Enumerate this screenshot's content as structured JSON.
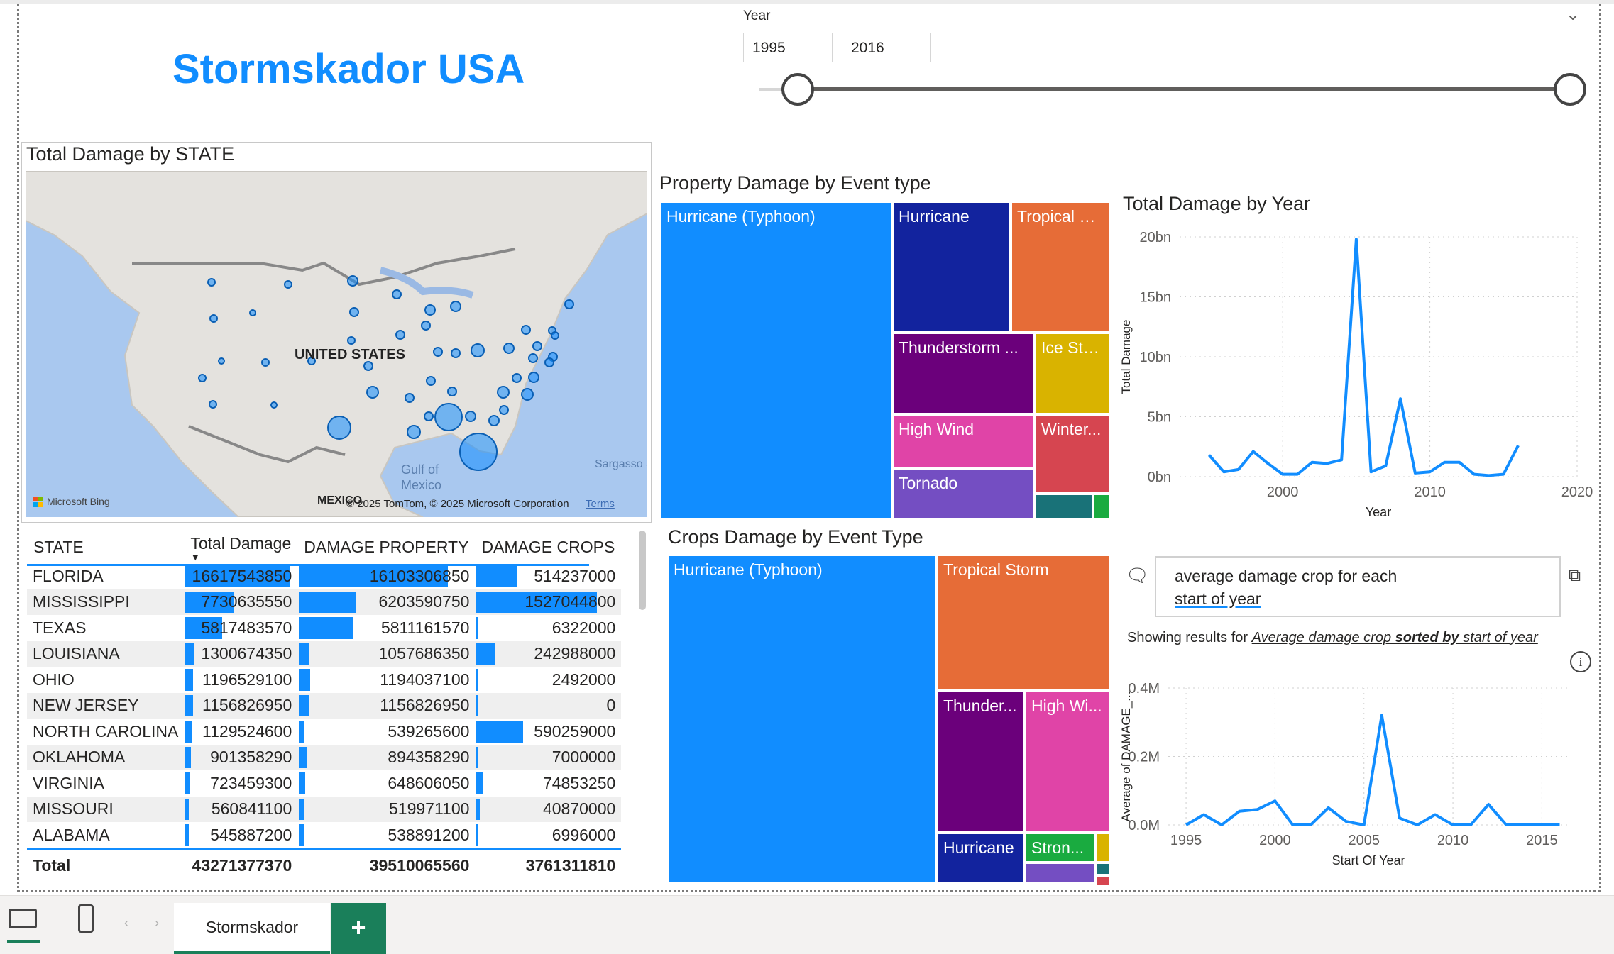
{
  "report": {
    "title": "Stormskador USA"
  },
  "year_slicer": {
    "label": "Year",
    "from": "1995",
    "to": "2016",
    "from_fraction": 0.0,
    "to_fraction": 1.0
  },
  "map": {
    "title": "Total Damage by STATE",
    "country_label": "UNITED STATES",
    "gulf_label": "Gulf of\nMexico",
    "mexico_label": "MEXICO",
    "sargasso_label": "Sargasso S",
    "bing_label": "Microsoft Bing",
    "copyright": "© 2025 TomTom, © 2025 Microsoft Corporation",
    "terms": "Terms"
  },
  "table": {
    "headers": [
      "STATE",
      "Total Damage",
      "DAMAGE PROPERTY",
      "DAMAGE CROPS"
    ],
    "rows": [
      [
        "FLORIDA",
        "16617543850",
        "16103306850",
        "514237000"
      ],
      [
        "MISSISSIPPI",
        "7730635550",
        "6203590750",
        "1527044800"
      ],
      [
        "TEXAS",
        "5817483570",
        "5811161570",
        "6322000"
      ],
      [
        "LOUISIANA",
        "1300674350",
        "1057686350",
        "242988000"
      ],
      [
        "OHIO",
        "1196529100",
        "1194037100",
        "2492000"
      ],
      [
        "NEW JERSEY",
        "1156826950",
        "1156826950",
        "0"
      ],
      [
        "NORTH CAROLINA",
        "1129524600",
        "539265600",
        "590259000"
      ],
      [
        "OKLAHOMA",
        "901358290",
        "894358290",
        "7000000"
      ],
      [
        "VIRGINIA",
        "723459300",
        "648606050",
        "74853250"
      ],
      [
        "MISSOURI",
        "560841100",
        "519971100",
        "40870000"
      ],
      [
        "ALABAMA",
        "545887200",
        "538891200",
        "6996000"
      ]
    ],
    "total": [
      "Total",
      "43271377370",
      "39510065560",
      "3761311810"
    ]
  },
  "property_treemap": {
    "title": "Property Damage by Event type",
    "tiles": [
      {
        "label": "Hurricane (Typhoon)",
        "color": "#118dff"
      },
      {
        "label": "Hurricane",
        "color": "#12239e"
      },
      {
        "label": "Tropical St...",
        "color": "#e66c37"
      },
      {
        "label": "Thunderstorm ...",
        "color": "#6b007b"
      },
      {
        "label": "Ice Sto...",
        "color": "#d9b300"
      },
      {
        "label": "High Wind",
        "color": "#e044a7"
      },
      {
        "label": "Winter...",
        "color": "#d64550"
      },
      {
        "label": "Tornado",
        "color": "#744ec2"
      },
      {
        "label": "",
        "color": "#197278"
      },
      {
        "label": "",
        "color": "#1aab40"
      }
    ]
  },
  "crops_treemap": {
    "title": "Crops Damage by Event Type",
    "tiles": [
      {
        "label": "Hurricane (Typhoon)",
        "color": "#118dff"
      },
      {
        "label": "Tropical Storm",
        "color": "#e66c37"
      },
      {
        "label": "Thunder...",
        "color": "#6b007b"
      },
      {
        "label": "High Wi...",
        "color": "#e044a7"
      },
      {
        "label": "Hurricane",
        "color": "#12239e"
      },
      {
        "label": "Stron...",
        "color": "#1aab40"
      },
      {
        "label": "",
        "color": "#d9b300"
      },
      {
        "label": "",
        "color": "#744ec2"
      },
      {
        "label": "",
        "color": "#197278"
      },
      {
        "label": "",
        "color": "#d64550"
      }
    ]
  },
  "qa": {
    "question_line1": "average damage crop for each",
    "question_line2": "start of year",
    "showing_prefix": "Showing results for ",
    "showing_link_1": "Average damage crop ",
    "showing_link_bold": "sorted by",
    "showing_link_2": " start of year"
  },
  "chart_data": [
    {
      "type": "line",
      "title": "Total Damage by Year",
      "xlabel": "Year",
      "ylabel": "Total Damage",
      "x_ticks": [
        "2000",
        "2010",
        "2020"
      ],
      "y_ticks": [
        "0bn",
        "5bn",
        "10bn",
        "15bn",
        "20bn"
      ],
      "xlim": [
        1993,
        2020
      ],
      "ylim": [
        0,
        20
      ],
      "y_unit": "bn",
      "series": [
        {
          "x": [
            1995,
            1996,
            1997,
            1998,
            1999,
            2000,
            2001,
            2002,
            2003,
            2004,
            2005,
            2006,
            2007,
            2008,
            2009,
            2010,
            2011,
            2012,
            2013,
            2014,
            2015,
            2016
          ],
          "y": [
            1.8,
            0.4,
            0.6,
            2.1,
            1.1,
            0.2,
            0.2,
            1.2,
            1.1,
            1.4,
            19.8,
            0.4,
            0.9,
            6.5,
            0.3,
            0.4,
            1.2,
            1.2,
            0.2,
            0.1,
            0.2,
            2.6
          ]
        }
      ]
    },
    {
      "type": "line",
      "xlabel": "Start Of Year",
      "ylabel": "Average of DAMAGE_...",
      "x_ticks": [
        "1995",
        "2000",
        "2005",
        "2010",
        "2015"
      ],
      "y_ticks": [
        "0.0M",
        "0.2M",
        "0.4M"
      ],
      "xlim": [
        1994,
        2016.5
      ],
      "ylim": [
        0,
        0.4
      ],
      "y_unit": "M",
      "series": [
        {
          "x": [
            1995,
            1996,
            1997,
            1998,
            1999,
            2000,
            2001,
            2002,
            2003,
            2004,
            2005,
            2006,
            2007,
            2008,
            2009,
            2010,
            2011,
            2012,
            2013,
            2014,
            2015,
            2016
          ],
          "y": [
            0.0,
            0.03,
            0.0,
            0.04,
            0.045,
            0.07,
            0.0,
            0.0,
            0.05,
            0.01,
            0.0,
            0.32,
            0.02,
            0.0,
            0.03,
            0.0,
            0.0,
            0.06,
            0.0,
            0.0,
            0.0,
            0.0
          ]
        }
      ]
    }
  ]
}
